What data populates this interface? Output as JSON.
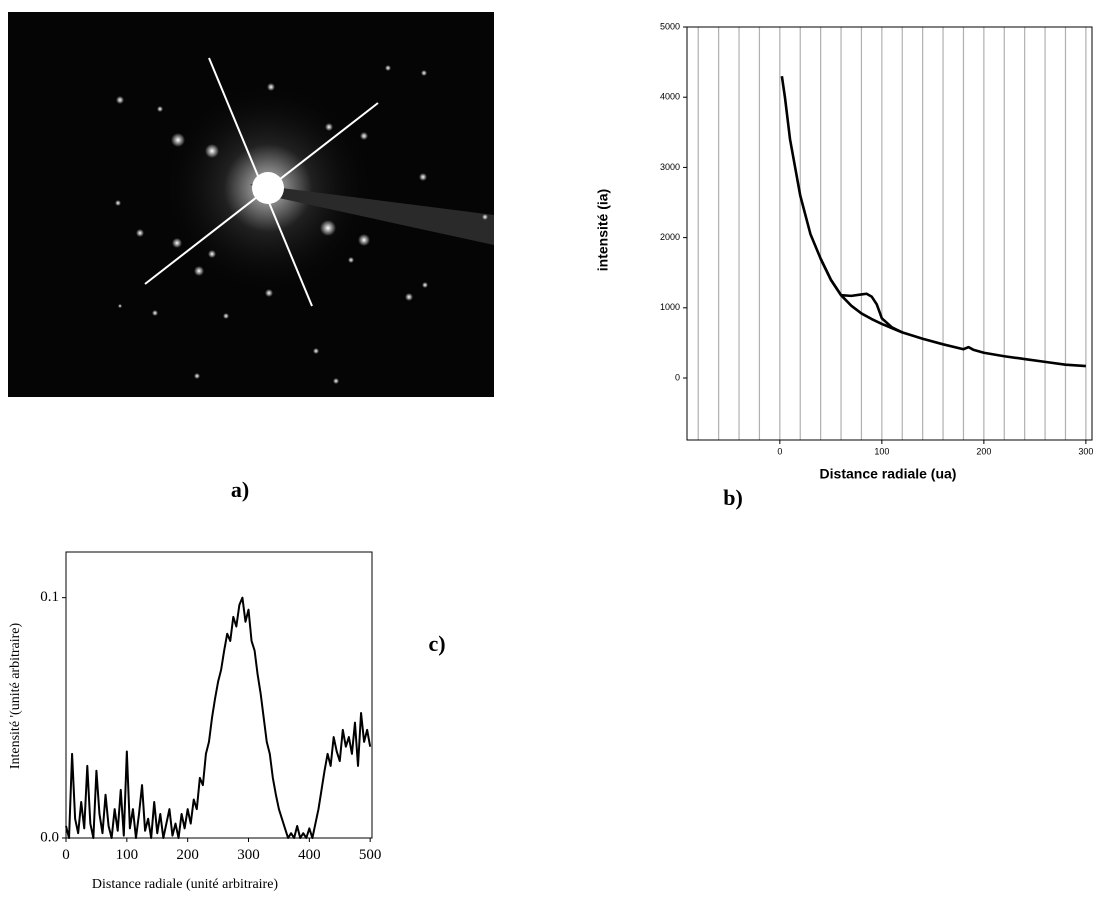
{
  "image": {
    "panel_label": "a)"
  },
  "chart_data": [
    {
      "type": "line",
      "panel_label": "b)",
      "xlabel": "Distance radiale (ua)",
      "ylabel": "intensité (ia)",
      "xlim": [
        -91,
        306
      ],
      "ylim": [
        -883,
        5000
      ],
      "xticks": [
        0,
        100,
        200,
        300
      ],
      "yticks": [
        0,
        1000,
        2000,
        3000,
        4000,
        5000
      ],
      "xgrid": [
        -80,
        -60,
        -40,
        -20,
        0,
        20,
        40,
        60,
        80,
        100,
        120,
        140,
        160,
        180,
        200,
        220,
        240,
        260,
        280,
        300
      ],
      "series": [
        {
          "color": "#000000",
          "x": [
            2,
            5,
            10,
            20,
            30,
            40,
            50,
            60,
            70,
            80,
            90,
            100,
            120,
            140,
            160,
            180,
            185,
            190,
            200,
            220,
            240,
            260,
            280,
            300
          ],
          "values": [
            4300,
            4000,
            3400,
            2600,
            2050,
            1700,
            1400,
            1180,
            1030,
            920,
            840,
            770,
            650,
            560,
            480,
            410,
            440,
            400,
            360,
            310,
            270,
            230,
            190,
            170
          ]
        },
        {
          "color": "#000000",
          "x": [
            40,
            50,
            60,
            70,
            80,
            85,
            90,
            95,
            100,
            110,
            120
          ],
          "values": [
            1700,
            1400,
            1180,
            1170,
            1190,
            1200,
            1160,
            1050,
            850,
            720,
            650
          ]
        }
      ]
    },
    {
      "type": "line",
      "panel_label": "c)",
      "xlabel": "Distance radiale (unité arbitraire)",
      "ylabel": "Intensité '(unité arbitraire)",
      "xlim": [
        0,
        503
      ],
      "ylim": [
        0,
        0.119
      ],
      "xticks": [
        0,
        100,
        200,
        300,
        400,
        500
      ],
      "yticks": [
        {
          "value": 0,
          "label": "0.0"
        },
        {
          "value": 0.1,
          "label": "0.1"
        }
      ],
      "series": [
        {
          "color": "#000000",
          "x": [
            0,
            5,
            10,
            15,
            20,
            25,
            30,
            35,
            40,
            45,
            50,
            55,
            60,
            65,
            70,
            75,
            80,
            85,
            90,
            95,
            100,
            105,
            110,
            115,
            120,
            125,
            130,
            135,
            140,
            145,
            150,
            155,
            160,
            165,
            170,
            175,
            180,
            185,
            190,
            195,
            200,
            205,
            210,
            215,
            220,
            225,
            230,
            235,
            240,
            245,
            250,
            255,
            260,
            265,
            270,
            275,
            280,
            285,
            290,
            295,
            300,
            305,
            310,
            315,
            320,
            325,
            330,
            335,
            340,
            345,
            350,
            355,
            360,
            365,
            370,
            375,
            380,
            385,
            390,
            395,
            400,
            405,
            410,
            415,
            420,
            425,
            430,
            435,
            440,
            445,
            450,
            455,
            460,
            465,
            470,
            475,
            480,
            485,
            490,
            495,
            500
          ],
          "values": [
            0.005,
            0,
            0.035,
            0.008,
            0.002,
            0.015,
            0.004,
            0.03,
            0.006,
            0,
            0.028,
            0.01,
            0.002,
            0.018,
            0.005,
            0,
            0.012,
            0.003,
            0.02,
            0.001,
            0.036,
            0.004,
            0.012,
            0,
            0.01,
            0.022,
            0.003,
            0.008,
            0,
            0.015,
            0.002,
            0.01,
            0,
            0.006,
            0.012,
            0.001,
            0.006,
            0,
            0.01,
            0.004,
            0.012,
            0.006,
            0.016,
            0.012,
            0.025,
            0.022,
            0.035,
            0.04,
            0.05,
            0.058,
            0.065,
            0.07,
            0.078,
            0.085,
            0.082,
            0.092,
            0.088,
            0.097,
            0.1,
            0.09,
            0.095,
            0.082,
            0.078,
            0.068,
            0.06,
            0.05,
            0.04,
            0.035,
            0.025,
            0.018,
            0.012,
            0.008,
            0.004,
            0,
            0.002,
            0,
            0.005,
            0,
            0.002,
            0,
            0.004,
            0,
            0.006,
            0.012,
            0.02,
            0.028,
            0.035,
            0.03,
            0.042,
            0.036,
            0.032,
            0.045,
            0.038,
            0.042,
            0.035,
            0.048,
            0.03,
            0.052,
            0.04,
            0.045,
            0.038
          ]
        }
      ]
    }
  ]
}
